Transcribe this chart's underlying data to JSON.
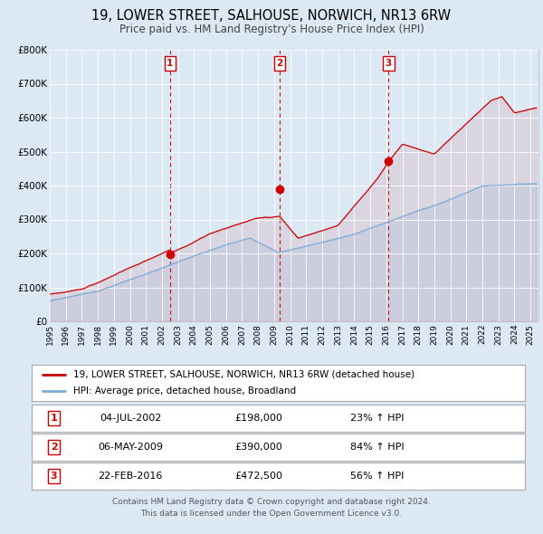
{
  "title": "19, LOWER STREET, SALHOUSE, NORWICH, NR13 6RW",
  "subtitle": "Price paid vs. HM Land Registry's House Price Index (HPI)",
  "background_color": "#dce9f5",
  "plot_bg_color": "#dce9f5",
  "red_line_color": "#cc0000",
  "blue_line_color": "#7aacda",
  "marker_color": "#cc0000",
  "grid_color": "#ffffff",
  "vline_color": "#cc0000",
  "sales": [
    {
      "label": "1",
      "date": "04-JUL-2002",
      "price": 198000,
      "hpi_pct": "23%",
      "direction": "↑"
    },
    {
      "label": "2",
      "date": "06-MAY-2009",
      "price": 390000,
      "hpi_pct": "84%",
      "direction": "↑"
    },
    {
      "label": "3",
      "date": "22-FEB-2016",
      "price": 472500,
      "hpi_pct": "56%",
      "direction": "↑"
    }
  ],
  "legend_entries": [
    "19, LOWER STREET, SALHOUSE, NORWICH, NR13 6RW (detached house)",
    "HPI: Average price, detached house, Broadland"
  ],
  "footer_line1": "Contains HM Land Registry data © Crown copyright and database right 2024.",
  "footer_line2": "This data is licensed under the Open Government Licence v3.0.",
  "yticks": [
    0,
    100000,
    200000,
    300000,
    400000,
    500000,
    600000,
    700000,
    800000
  ],
  "yticklabels": [
    "£0",
    "£100K",
    "£200K",
    "£300K",
    "£400K",
    "£500K",
    "£600K",
    "£700K",
    "£800K"
  ]
}
